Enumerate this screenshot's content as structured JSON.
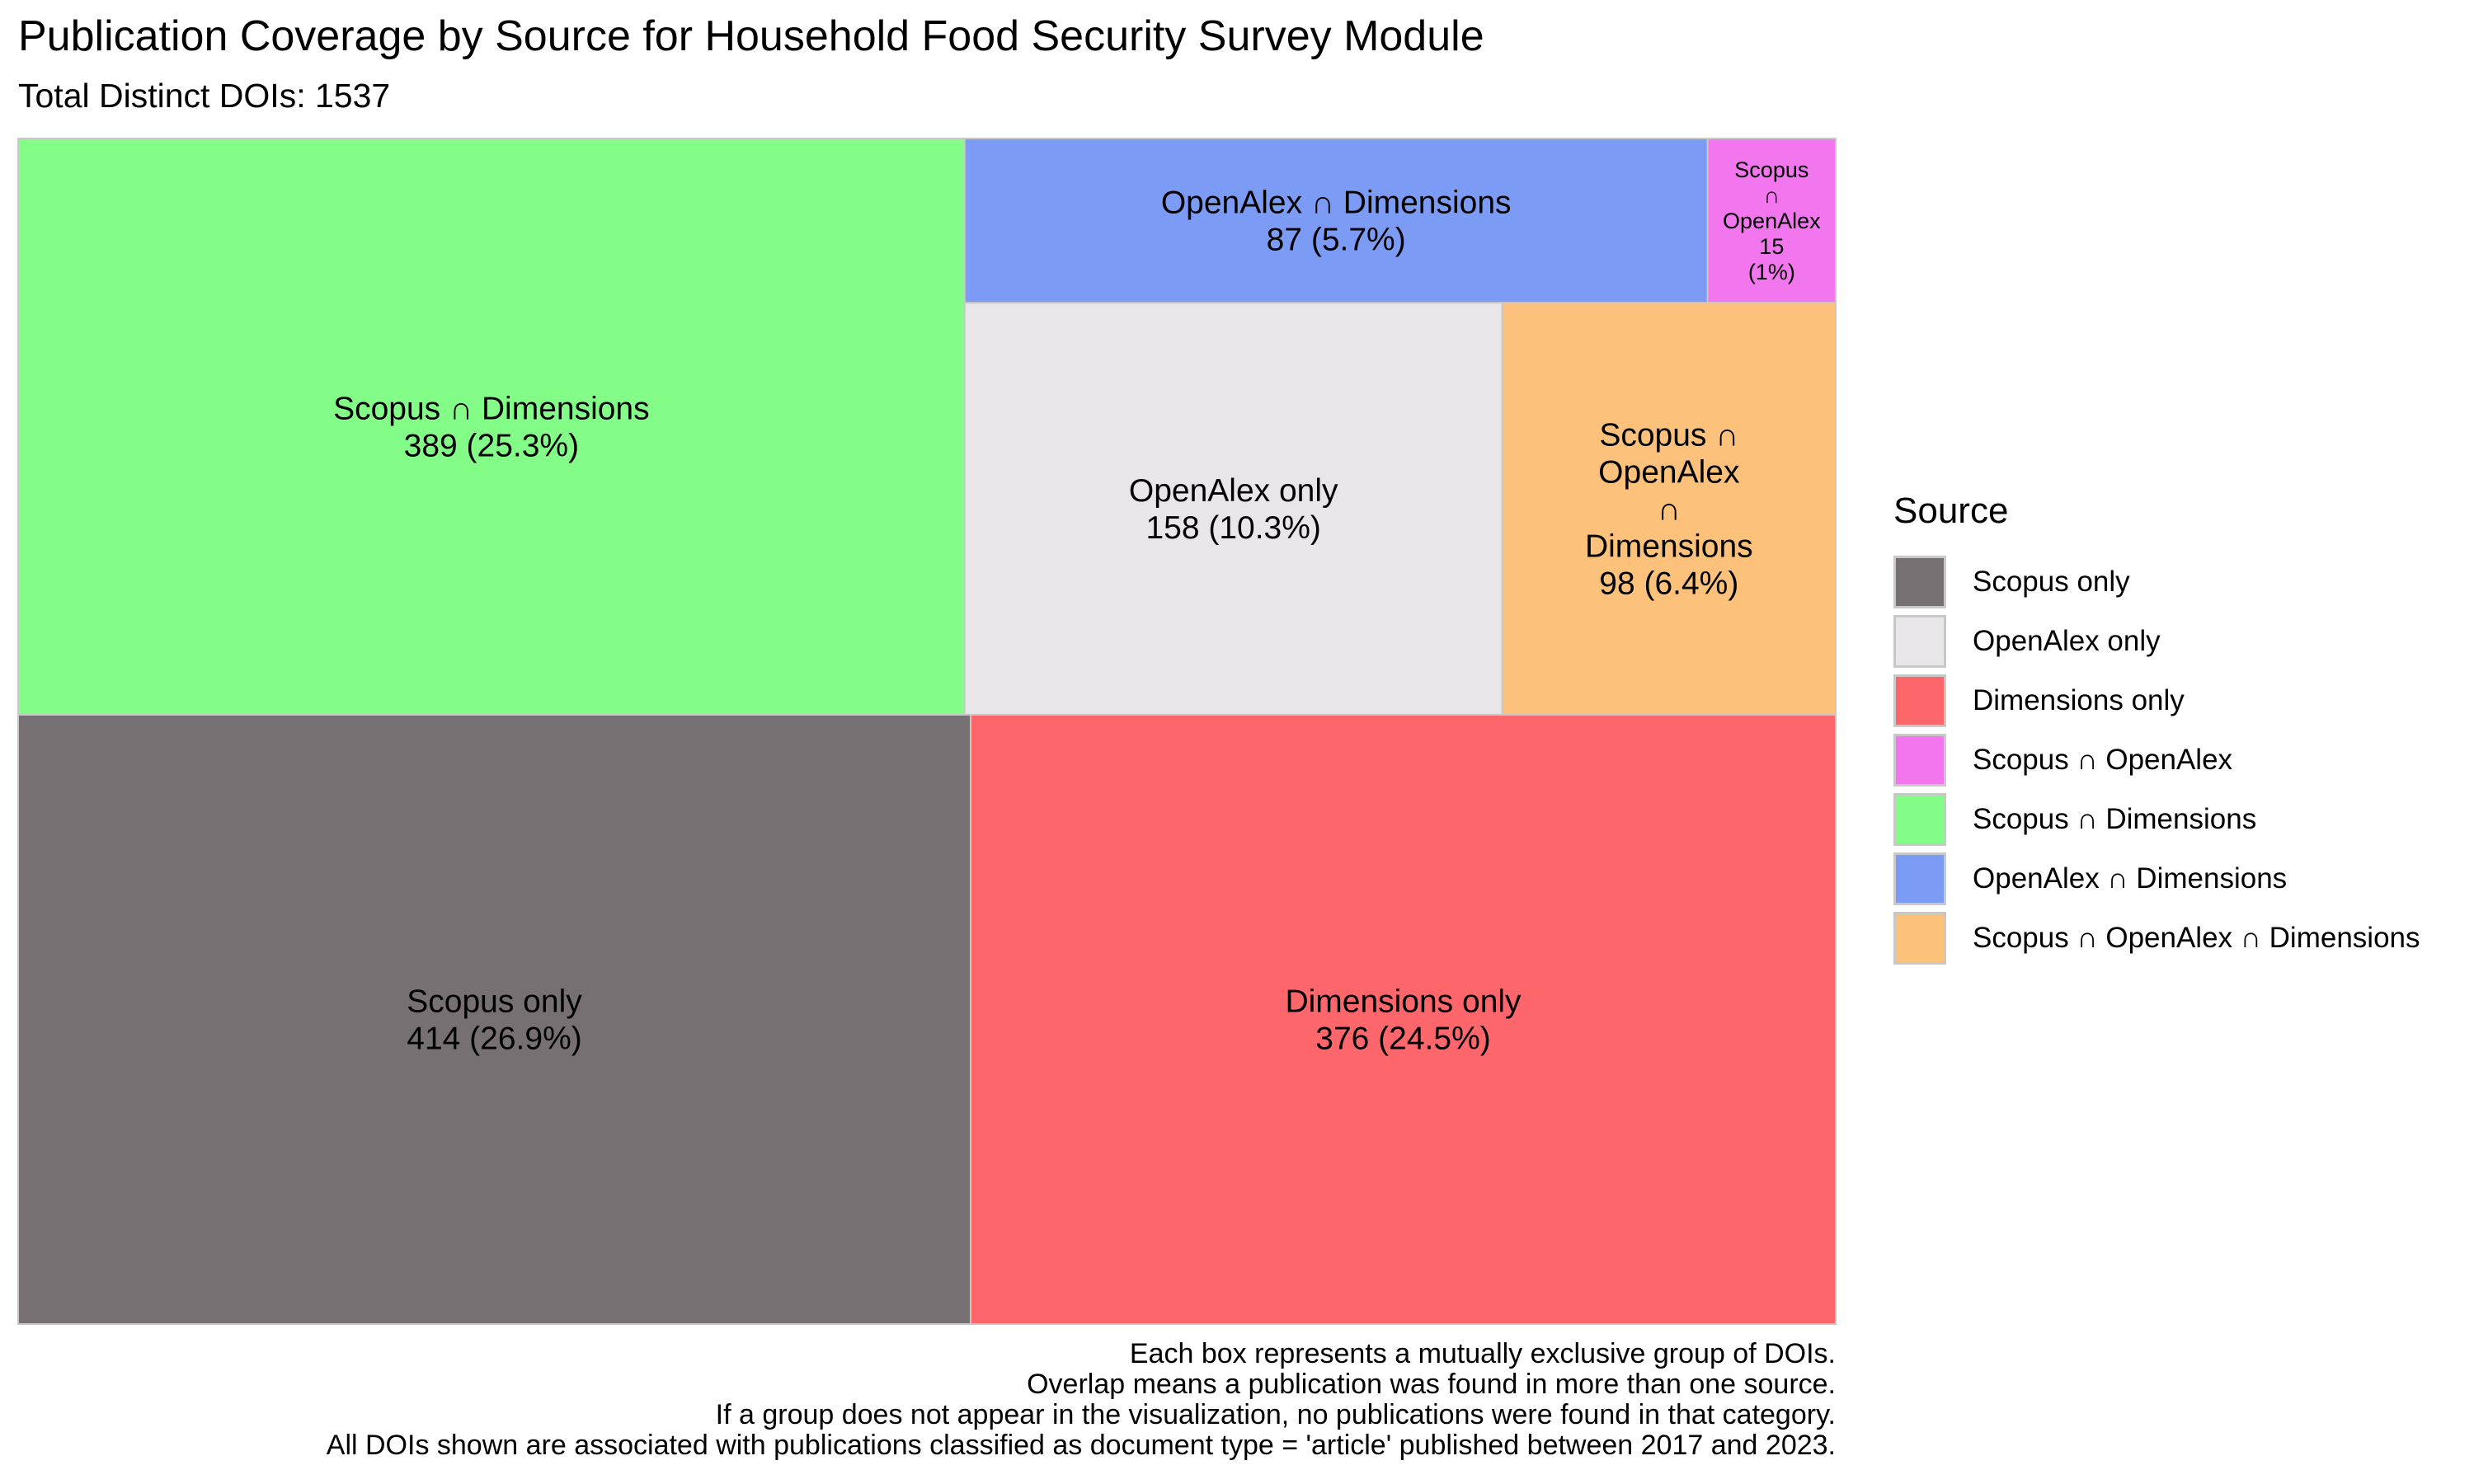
{
  "chart_data": {
    "type": "treemap",
    "title": "Publication Coverage by Source for Household Food Security Survey Module",
    "subtitle": "Total Distinct DOIs: 1537",
    "total": 1537,
    "legend": {
      "title": "Source",
      "placement": "right",
      "items": [
        {
          "label": "Scopus only",
          "color": "#767072"
        },
        {
          "label": "OpenAlex only",
          "color": "#e8e6e9"
        },
        {
          "label": "Dimensions only",
          "color": "#fd676b"
        },
        {
          "label": "Scopus ∩ OpenAlex",
          "color": "#f276ed"
        },
        {
          "label": "Scopus ∩ Dimensions",
          "color": "#83fd87"
        },
        {
          "label": "OpenAlex ∩ Dimensions",
          "color": "#7b9bf5"
        },
        {
          "label": "Scopus ∩ OpenAlex ∩ Dimensions",
          "color": "#fcc17b"
        }
      ]
    },
    "tiles": [
      {
        "label": "Scopus only",
        "label_lines": [
          "Scopus only",
          "414 (26.9%)"
        ],
        "value": 414,
        "percent": 26.9,
        "color": "#767072"
      },
      {
        "label": "Dimensions only",
        "label_lines": [
          "Dimensions only",
          "376 (24.5%)"
        ],
        "value": 376,
        "percent": 24.5,
        "color": "#fd676b"
      },
      {
        "label": "Scopus ∩ Dimensions",
        "label_lines": [
          "Scopus ∩ Dimensions",
          "389 (25.3%)"
        ],
        "value": 389,
        "percent": 25.3,
        "color": "#83fd87"
      },
      {
        "label": "OpenAlex only",
        "label_lines": [
          "OpenAlex only",
          "158 (10.3%)"
        ],
        "value": 158,
        "percent": 10.3,
        "color": "#e8e6e9"
      },
      {
        "label": "Scopus ∩ OpenAlex ∩ Dimensions",
        "label_lines": [
          "Scopus ∩",
          "OpenAlex",
          "∩",
          "Dimensions",
          "98 (6.4%)"
        ],
        "value": 98,
        "percent": 6.4,
        "color": "#fcc17b"
      },
      {
        "label": "OpenAlex ∩ Dimensions",
        "label_lines": [
          "OpenAlex ∩ Dimensions",
          "87 (5.7%)"
        ],
        "value": 87,
        "percent": 5.7,
        "color": "#7b9bf5"
      },
      {
        "label": "Scopus ∩ OpenAlex",
        "label_lines": [
          "Scopus",
          "∩",
          "OpenAlex",
          "15",
          "(1%)"
        ],
        "value": 15,
        "percent": 1,
        "color": "#f276ed"
      }
    ],
    "caption": [
      "Each box represents a mutually exclusive group of DOIs.",
      "Overlap means a publication was found in more than one source.",
      "If a group does not appear in the visualization, no publications were found in that category.",
      "All DOIs shown are associated with publications classified as document type = 'article' published between 2017 and 2023."
    ]
  }
}
